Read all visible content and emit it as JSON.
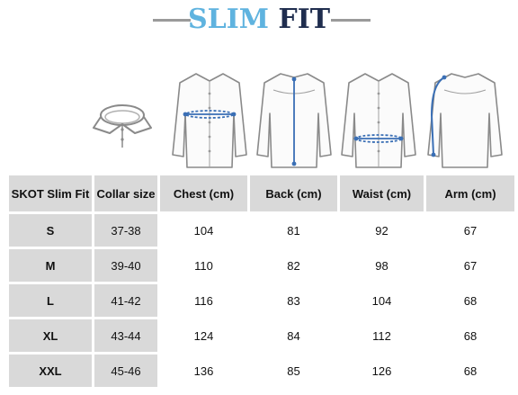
{
  "title": {
    "part1": "SLIM",
    "part2": "FIT"
  },
  "colors": {
    "accent": "#5fb3df",
    "navy": "#1f2d4e",
    "cell_grey": "#d9d9d9",
    "measure_blue": "#3a6fb5"
  },
  "illustrations": [
    "collar-icon",
    "shirt-chest-icon",
    "shirt-back-icon",
    "shirt-waist-icon",
    "shirt-arm-icon"
  ],
  "table": {
    "headers": [
      "SKOT Slim Fit",
      "Collar size",
      "Chest (cm)",
      "Back (cm)",
      "Waist (cm)",
      "Arm (cm)"
    ],
    "rows": [
      {
        "size": "S",
        "collar": "37-38",
        "chest": "104",
        "back": "81",
        "waist": "92",
        "arm": "67"
      },
      {
        "size": "M",
        "collar": "39-40",
        "chest": "110",
        "back": "82",
        "waist": "98",
        "arm": "67"
      },
      {
        "size": "L",
        "collar": "41-42",
        "chest": "116",
        "back": "83",
        "waist": "104",
        "arm": "68"
      },
      {
        "size": "XL",
        "collar": "43-44",
        "chest": "124",
        "back": "84",
        "waist": "112",
        "arm": "68"
      },
      {
        "size": "XXL",
        "collar": "45-46",
        "chest": "136",
        "back": "85",
        "waist": "126",
        "arm": "68"
      }
    ]
  }
}
